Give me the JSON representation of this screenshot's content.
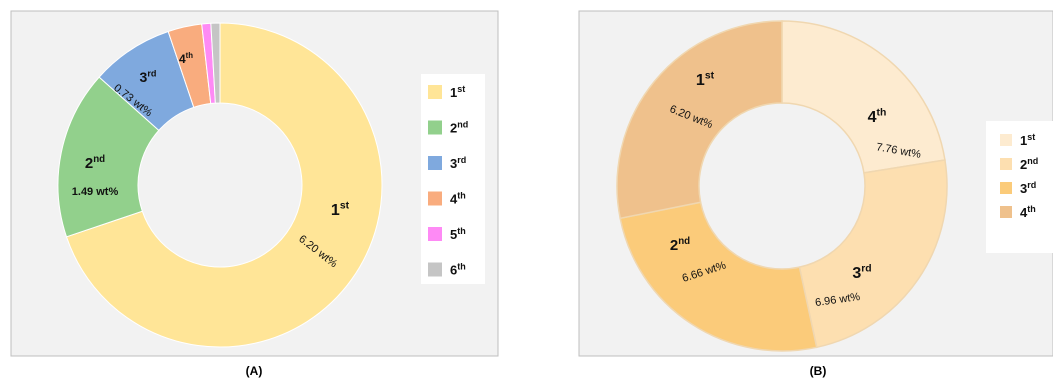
{
  "chart_data": [
    {
      "type": "pie",
      "panel_label": "(A)",
      "categories": [
        "1st",
        "2nd",
        "3rd",
        "4th",
        "5th",
        "6th"
      ],
      "values": [
        6.2,
        1.49,
        0.73,
        0.3,
        0.08,
        0.08
      ],
      "colors": [
        "#FFE597",
        "#92D08C",
        "#7FA9DE",
        "#F9AC7E",
        "#FE8AF5",
        "#C5C5C5"
      ],
      "labels": [
        {
          "ordinal": "1",
          "suffix": "st",
          "value_text": "6.20 wt%"
        },
        {
          "ordinal": "2",
          "suffix": "nd",
          "value_text": "1.49 wt%"
        },
        {
          "ordinal": "3",
          "suffix": "rd",
          "value_text": "0.73 wt%"
        },
        {
          "ordinal": "4",
          "suffix": "th",
          "value_text": ""
        }
      ],
      "legend": [
        {
          "ordinal": "1",
          "suffix": "st"
        },
        {
          "ordinal": "2",
          "suffix": "nd"
        },
        {
          "ordinal": "3",
          "suffix": "rd"
        },
        {
          "ordinal": "4",
          "suffix": "th"
        },
        {
          "ordinal": "5",
          "suffix": "th"
        },
        {
          "ordinal": "6",
          "suffix": "th"
        }
      ],
      "legend_position": "right"
    },
    {
      "type": "pie",
      "panel_label": "(B)",
      "categories": [
        "1st",
        "2nd",
        "3rd",
        "4th"
      ],
      "values": [
        6.2,
        6.66,
        6.96,
        7.76
      ],
      "colors": [
        "#FDEBD0",
        "#FDDFB0",
        "#FBCB7A",
        "#EFC18C"
      ],
      "labels": [
        {
          "ordinal": "1",
          "suffix": "st",
          "value_text": "6.20 wt%"
        },
        {
          "ordinal": "2",
          "suffix": "nd",
          "value_text": "6.66 wt%"
        },
        {
          "ordinal": "3",
          "suffix": "rd",
          "value_text": "6.96 wt%"
        },
        {
          "ordinal": "4",
          "suffix": "th",
          "value_text": "7.76 wt%"
        }
      ],
      "legend": [
        {
          "ordinal": "1",
          "suffix": "st"
        },
        {
          "ordinal": "2",
          "suffix": "nd"
        },
        {
          "ordinal": "3",
          "suffix": "rd"
        },
        {
          "ordinal": "4",
          "suffix": "th"
        }
      ],
      "legend_position": "right"
    }
  ]
}
